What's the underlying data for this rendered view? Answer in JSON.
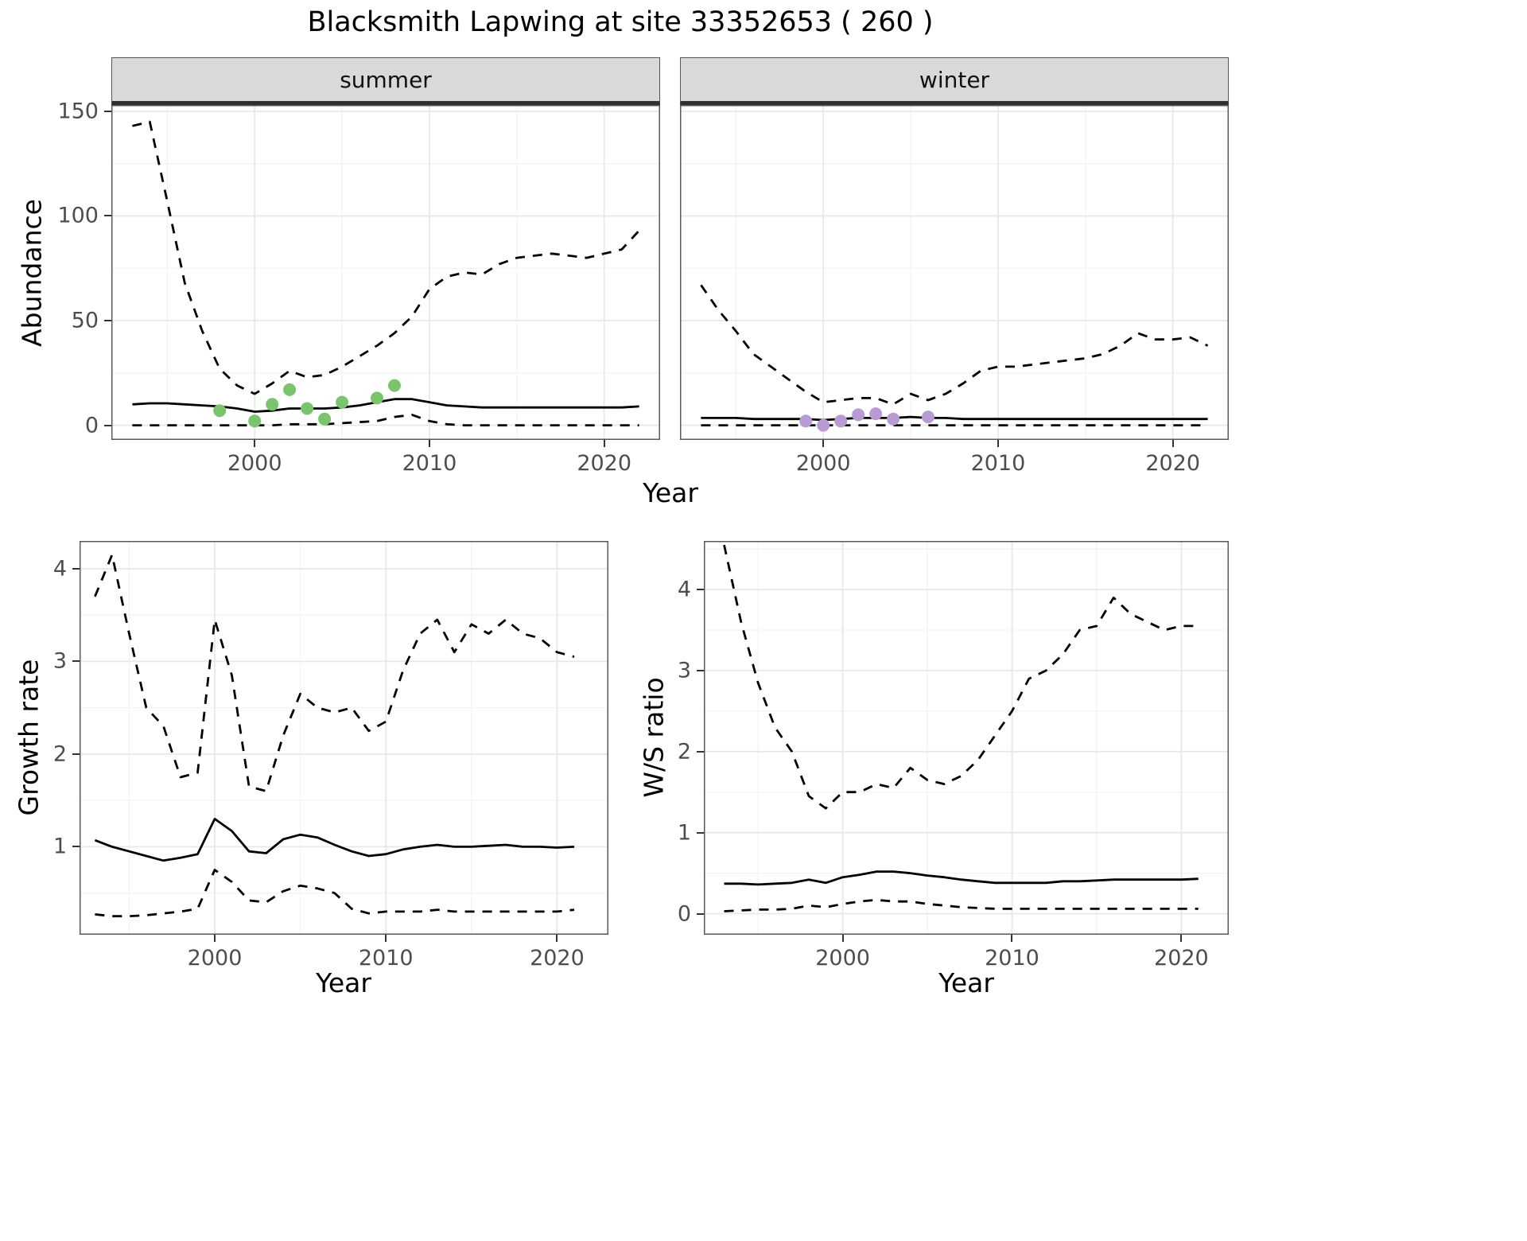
{
  "title": "Blacksmith Lapwing at site 33352653 ( 260 )",
  "style": {
    "background": "#ffffff",
    "line_color": "#000000",
    "summer_point_color": "#7ac46e",
    "winter_point_color": "#b89bd2",
    "strip_bg": "#d9d9d9",
    "strip_border": "#2f2f2f",
    "panel_border": "#595959",
    "grid_major": "#e8e8e8",
    "grid_minor": "#f3f3f3",
    "tick_label_color": "#4d4d4d"
  },
  "chart_data": [
    {
      "id": "abundance-summer",
      "type": "line",
      "facet_label": "summer",
      "xlabel": "Year",
      "ylabel": "Abundance",
      "xlim": [
        1991.8,
        2023.2
      ],
      "ylim": [
        -7,
        153
      ],
      "xticks": [
        2000,
        2010,
        2020
      ],
      "yticks": [
        0,
        50,
        100,
        150
      ],
      "grid": true,
      "x": [
        1993,
        1994,
        1995,
        1996,
        1997,
        1998,
        1999,
        2000,
        2001,
        2002,
        2003,
        2004,
        2005,
        2006,
        2007,
        2008,
        2009,
        2010,
        2011,
        2012,
        2013,
        2014,
        2015,
        2016,
        2017,
        2018,
        2019,
        2020,
        2021,
        2022
      ],
      "series": [
        {
          "name": "upper-ci",
          "style": "dashed",
          "values": [
            143,
            145,
            107,
            68,
            45,
            27,
            19,
            15,
            20,
            26,
            23,
            24,
            28,
            33,
            38,
            44,
            52,
            65,
            71,
            73,
            72,
            77,
            80,
            81,
            82,
            81,
            80,
            82,
            84,
            93
          ]
        },
        {
          "name": "median",
          "style": "solid",
          "values": [
            10,
            10.5,
            10.5,
            10,
            9.5,
            9,
            8,
            6.5,
            7,
            8,
            8,
            8,
            8.5,
            9.5,
            11,
            12.5,
            12.5,
            11,
            9.5,
            9,
            8.5,
            8.5,
            8.5,
            8.5,
            8.5,
            8.5,
            8.5,
            8.5,
            8.5,
            9
          ]
        },
        {
          "name": "lower-ci",
          "style": "dashed",
          "values": [
            0,
            0,
            0,
            0,
            0,
            0,
            0,
            0,
            0,
            0.5,
            0.5,
            0.5,
            1,
            1.5,
            2,
            4,
            5,
            2,
            0.5,
            0,
            0,
            0,
            0,
            0,
            0,
            0,
            0,
            0,
            0,
            0
          ]
        }
      ],
      "points": {
        "name": "observed-counts",
        "color_key": "summer_point_color",
        "x": [
          1998,
          2000,
          2001,
          2002,
          2003,
          2004,
          2005,
          2007,
          2008
        ],
        "y": [
          7,
          2,
          10,
          17,
          8,
          3,
          11,
          13,
          19
        ]
      }
    },
    {
      "id": "abundance-winter",
      "type": "line",
      "facet_label": "winter",
      "xlabel": "Year",
      "ylabel": "Abundance",
      "xlim": [
        1991.8,
        2023.2
      ],
      "ylim": [
        -7,
        153
      ],
      "xticks": [
        2000,
        2010,
        2020
      ],
      "yticks": [
        0,
        50,
        100,
        150
      ],
      "grid": true,
      "x": [
        1993,
        1994,
        1995,
        1996,
        1997,
        1998,
        1999,
        2000,
        2001,
        2002,
        2003,
        2004,
        2005,
        2006,
        2007,
        2008,
        2009,
        2010,
        2011,
        2012,
        2013,
        2014,
        2015,
        2016,
        2017,
        2018,
        2019,
        2020,
        2021,
        2022
      ],
      "series": [
        {
          "name": "upper-ci",
          "style": "dashed",
          "values": [
            67,
            55,
            45,
            34,
            28,
            22,
            16,
            11,
            12,
            13,
            13,
            10,
            15,
            12,
            15,
            20,
            26,
            28,
            28,
            29,
            30,
            31,
            32,
            34,
            38,
            44,
            41,
            41,
            42,
            38
          ]
        },
        {
          "name": "median",
          "style": "solid",
          "values": [
            3.5,
            3.5,
            3.5,
            3,
            3,
            3,
            3,
            2.5,
            3,
            3.5,
            3.5,
            3.5,
            4,
            3.5,
            3.5,
            3,
            3,
            3,
            3,
            3,
            3,
            3,
            3,
            3,
            3,
            3,
            3,
            3,
            3,
            3
          ]
        },
        {
          "name": "lower-ci",
          "style": "dashed",
          "values": [
            0,
            0,
            0,
            0,
            0,
            0,
            0,
            0,
            0,
            0,
            0,
            0,
            0,
            0,
            0,
            0,
            0,
            0,
            0,
            0,
            0,
            0,
            0,
            0,
            0,
            0,
            0,
            0,
            0,
            0
          ]
        }
      ],
      "points": {
        "name": "observed-counts",
        "color_key": "winter_point_color",
        "x": [
          1999,
          2000,
          2001,
          2002,
          2003,
          2004,
          2006
        ],
        "y": [
          2,
          0,
          2,
          5,
          5.5,
          3,
          4
        ]
      }
    },
    {
      "id": "growth-rate",
      "type": "line",
      "facet_label": "",
      "xlabel": "Year",
      "ylabel": "Growth rate",
      "xlim": [
        1992.1,
        2023.0
      ],
      "ylim": [
        0.05,
        4.3
      ],
      "xticks": [
        2000,
        2010,
        2020
      ],
      "yticks": [
        1,
        2,
        3,
        4
      ],
      "grid": true,
      "x": [
        1993,
        1994,
        1995,
        1996,
        1997,
        1998,
        1999,
        2000,
        2001,
        2002,
        2003,
        2004,
        2005,
        2006,
        2007,
        2008,
        2009,
        2010,
        2011,
        2012,
        2013,
        2014,
        2015,
        2016,
        2017,
        2018,
        2019,
        2020,
        2021
      ],
      "series": [
        {
          "name": "upper-ci",
          "style": "dashed",
          "values": [
            3.7,
            4.15,
            3.3,
            2.5,
            2.3,
            1.75,
            1.8,
            3.45,
            2.85,
            1.65,
            1.6,
            2.2,
            2.65,
            2.5,
            2.45,
            2.5,
            2.25,
            2.35,
            2.9,
            3.3,
            3.45,
            3.1,
            3.4,
            3.3,
            3.45,
            3.3,
            3.25,
            3.1,
            3.05
          ]
        },
        {
          "name": "median",
          "style": "solid",
          "values": [
            1.07,
            1.0,
            0.95,
            0.9,
            0.85,
            0.88,
            0.92,
            1.3,
            1.17,
            0.95,
            0.93,
            1.08,
            1.13,
            1.1,
            1.02,
            0.95,
            0.9,
            0.92,
            0.97,
            1.0,
            1.02,
            1.0,
            1.0,
            1.01,
            1.02,
            1.0,
            1.0,
            0.99,
            1.0
          ]
        },
        {
          "name": "lower-ci",
          "style": "dashed",
          "values": [
            0.27,
            0.25,
            0.25,
            0.26,
            0.28,
            0.3,
            0.33,
            0.75,
            0.62,
            0.42,
            0.4,
            0.52,
            0.58,
            0.55,
            0.5,
            0.33,
            0.28,
            0.3,
            0.3,
            0.3,
            0.32,
            0.3,
            0.3,
            0.3,
            0.3,
            0.3,
            0.3,
            0.3,
            0.32
          ]
        }
      ],
      "points": null
    },
    {
      "id": "ws-ratio",
      "type": "line",
      "facet_label": "",
      "xlabel": "Year",
      "ylabel": "W/S ratio",
      "xlim": [
        1991.8,
        2022.8
      ],
      "ylim": [
        -0.26,
        4.6
      ],
      "xticks": [
        2000,
        2010,
        2020
      ],
      "yticks": [
        0,
        1,
        2,
        3,
        4
      ],
      "grid": true,
      "x": [
        1993,
        1994,
        1995,
        1996,
        1997,
        1998,
        1999,
        2000,
        2001,
        2002,
        2003,
        2004,
        2005,
        2006,
        2007,
        2008,
        2009,
        2010,
        2011,
        2012,
        2013,
        2014,
        2015,
        2016,
        2017,
        2018,
        2019,
        2020,
        2021
      ],
      "series": [
        {
          "name": "upper-ci",
          "style": "dashed",
          "values": [
            4.55,
            3.6,
            2.85,
            2.3,
            2.0,
            1.45,
            1.3,
            1.5,
            1.5,
            1.6,
            1.55,
            1.8,
            1.65,
            1.6,
            1.7,
            1.9,
            2.2,
            2.5,
            2.9,
            3.0,
            3.2,
            3.5,
            3.55,
            3.9,
            3.7,
            3.6,
            3.5,
            3.55,
            3.55
          ]
        },
        {
          "name": "median",
          "style": "solid",
          "values": [
            0.37,
            0.37,
            0.36,
            0.37,
            0.38,
            0.42,
            0.38,
            0.45,
            0.48,
            0.52,
            0.52,
            0.5,
            0.47,
            0.45,
            0.42,
            0.4,
            0.38,
            0.38,
            0.38,
            0.38,
            0.4,
            0.4,
            0.41,
            0.42,
            0.42,
            0.42,
            0.42,
            0.42,
            0.43
          ]
        },
        {
          "name": "lower-ci",
          "style": "dashed",
          "values": [
            0.03,
            0.04,
            0.05,
            0.05,
            0.06,
            0.1,
            0.08,
            0.12,
            0.15,
            0.17,
            0.15,
            0.15,
            0.12,
            0.1,
            0.08,
            0.07,
            0.06,
            0.06,
            0.06,
            0.06,
            0.06,
            0.06,
            0.06,
            0.06,
            0.06,
            0.06,
            0.06,
            0.06,
            0.06
          ]
        }
      ],
      "points": null
    }
  ]
}
